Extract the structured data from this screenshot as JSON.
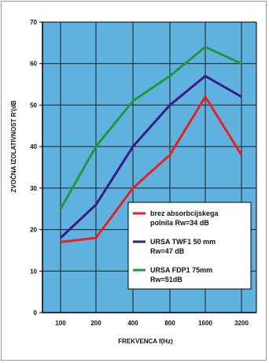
{
  "chart_data": {
    "type": "line",
    "x": [
      "100",
      "200",
      "400",
      "800",
      "1600",
      "3200"
    ],
    "xlabel": "FREKVENCA f(Hz)",
    "ylabel": "ZVOČNA IZOLATIVNOST R'(dB",
    "ylim": [
      0,
      70
    ],
    "yticks": [
      0,
      10,
      20,
      30,
      40,
      50,
      60,
      70
    ],
    "grid": true,
    "plot_background": "#5fb2e0",
    "legend_position": "lower-right",
    "series": [
      {
        "name": "brez absorbcijskega polnila Rw=34 dB",
        "name_lines": [
          "brez absorbcijskega",
          "polnila Rw=34 dB"
        ],
        "color": "#e8201f",
        "values": [
          17,
          18,
          30,
          38,
          52,
          38
        ]
      },
      {
        "name": "URSA TWF1 50 mm Rw=47 dB",
        "name_lines": [
          "URSA TWF1 50 mm",
          "Rw=47 dB"
        ],
        "color": "#3a1a86",
        "values": [
          18,
          26,
          40,
          50,
          57,
          52
        ]
      },
      {
        "name": "URSA FDP1 75mm Rw=51dB",
        "name_lines": [
          "URSA FDP1 75mm",
          "Rw=51dB"
        ],
        "color": "#1f9a3a",
        "values": [
          25,
          40,
          51,
          57,
          64,
          60
        ]
      }
    ]
  }
}
